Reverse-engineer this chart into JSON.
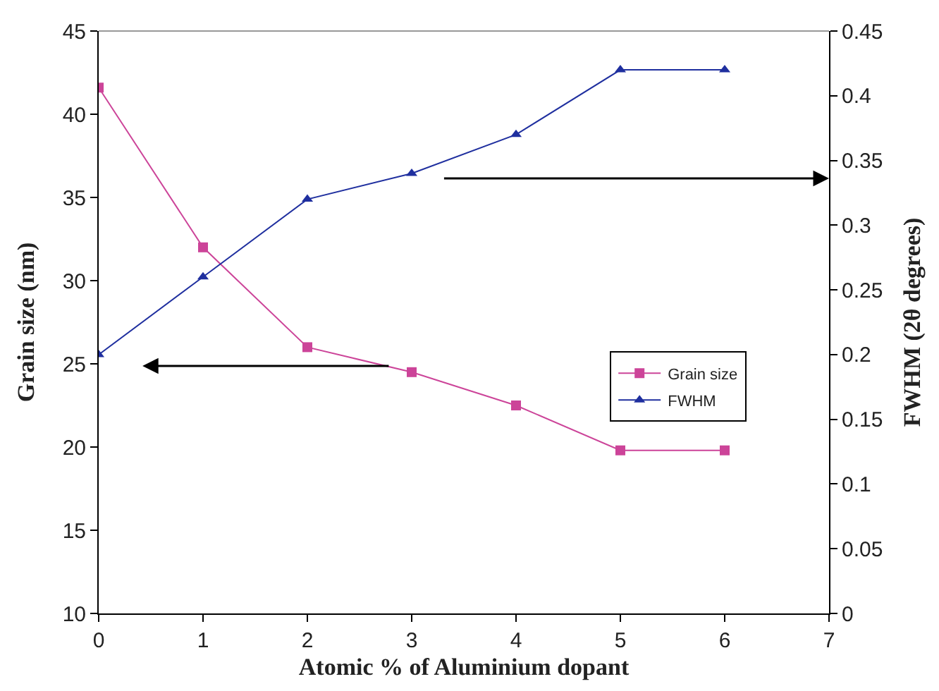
{
  "chart_data": {
    "type": "line",
    "xlabel": "Atomic % of Aluminium dopant",
    "ylabel": "Grain size (nm)",
    "y2label": "FWHM (2θ degrees)",
    "x": [
      0,
      1,
      2,
      3,
      4,
      5,
      6
    ],
    "series": [
      {
        "name": "Grain size",
        "color": "#cc4499",
        "marker": "square",
        "values": [
          41.6,
          32,
          26,
          24.5,
          22.5,
          19.8,
          19.8
        ]
      },
      {
        "name": "FWHM",
        "color": "#1f2f9f",
        "marker": "triangle",
        "axis": "y2",
        "values": [
          0.2,
          0.26,
          0.32,
          0.34,
          0.37,
          0.42,
          0.42
        ]
      }
    ],
    "xlim": [
      0,
      7
    ],
    "xticks": [
      0,
      1,
      2,
      3,
      4,
      5,
      6,
      7
    ],
    "ylim": [
      10,
      45
    ],
    "yticks": [
      10,
      15,
      20,
      25,
      30,
      35,
      40,
      45
    ],
    "y2lim": [
      0,
      0.45
    ],
    "y2ticks": [
      0,
      0.05,
      0.1,
      0.15,
      0.2,
      0.25,
      0.3,
      0.35,
      0.4,
      0.45
    ],
    "legend": "right"
  }
}
